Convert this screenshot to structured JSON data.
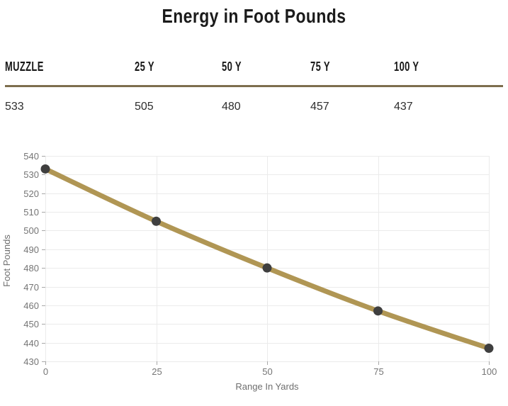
{
  "page": {
    "title": "Energy in Foot Pounds"
  },
  "table": {
    "headers": [
      "MUZZLE",
      "25 Y",
      "50 Y",
      "75 Y",
      "100 Y"
    ],
    "values": [
      "533",
      "505",
      "480",
      "457",
      "437"
    ]
  },
  "chart_data": {
    "type": "line",
    "x": [
      0,
      25,
      50,
      75,
      100
    ],
    "series": [
      {
        "name": "Foot Pounds",
        "values": [
          533,
          505,
          480,
          457,
          437
        ]
      }
    ],
    "xlabel": "Range In Yards",
    "ylabel": "Foot Pounds",
    "xlim": [
      0,
      100
    ],
    "ylim": [
      430,
      540
    ],
    "x_ticks": [
      0,
      25,
      50,
      75,
      100
    ],
    "y_ticks": [
      430,
      440,
      450,
      460,
      470,
      480,
      490,
      500,
      510,
      520,
      530,
      540
    ],
    "grid": true,
    "legend": "none",
    "smooth": true,
    "colors": {
      "line": "#b09654",
      "marker": "#3f3f3f",
      "grid": "#ebebeb",
      "tick": "#a8a8a8",
      "axis_label": "#757575",
      "axis_title": "#6e6e6e"
    }
  },
  "colors": {
    "background": "#ffffff",
    "title_text": "#1b1b1b",
    "header_text": "#171717",
    "value_text": "#2e2e2e",
    "divider": "#7d6e4e"
  }
}
